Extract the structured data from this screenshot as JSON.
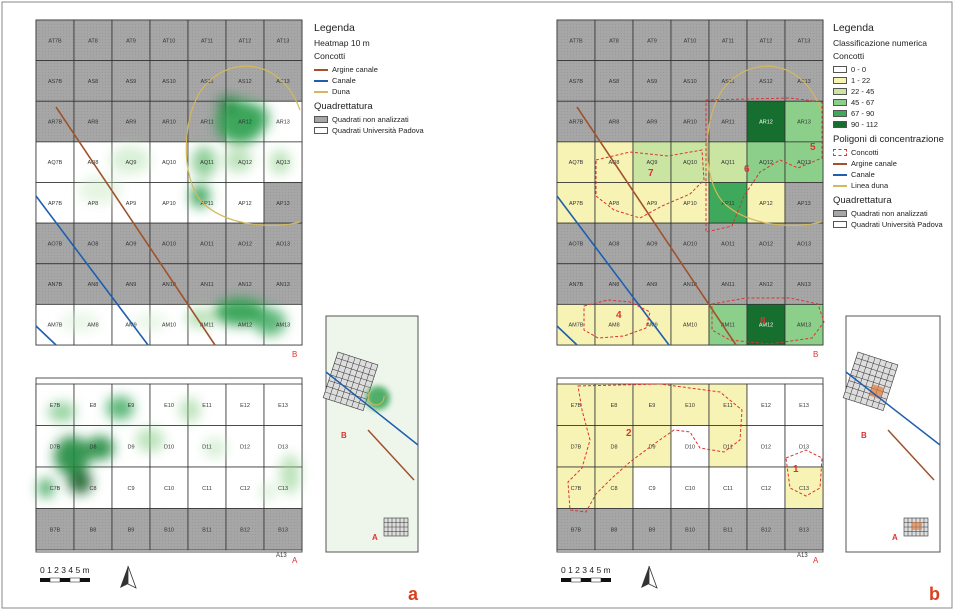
{
  "panel_a": {
    "letter": "a",
    "legend": {
      "title": "Legenda",
      "subtitle": "Heatmap 10 m",
      "concotti_label": "Concotti",
      "lines": [
        {
          "label": "Argine canale",
          "color": "#a0522d"
        },
        {
          "label": "Canale",
          "color": "#1f5fae"
        },
        {
          "label": "Duna",
          "color": "#d4b85c"
        }
      ],
      "grid_title": "Quadrettatura",
      "grid_items": [
        {
          "label": "Quadrati non analizzati",
          "color": "#a6a6a6"
        },
        {
          "label": "Quadrati Università Padova",
          "color": "#ffffff"
        }
      ]
    }
  },
  "panel_b": {
    "letter": "b",
    "legend": {
      "title": "Legenda",
      "subtitle": "Classificazione numerica",
      "concotti_label": "Concotti",
      "classes": [
        {
          "label": "0 - 0",
          "color": "#ffffff"
        },
        {
          "label": "1 - 22",
          "color": "#f7f3b4"
        },
        {
          "label": "22 - 45",
          "color": "#c9e5a1"
        },
        {
          "label": "45 - 67",
          "color": "#8ccf8a"
        },
        {
          "label": "67 - 90",
          "color": "#3ea95a"
        },
        {
          "label": "90 - 112",
          "color": "#166e2f"
        }
      ],
      "polygons_title": "Poligoni di concentrazione",
      "polygon_item": "Concotti",
      "lines": [
        {
          "label": "Argine canale",
          "color": "#a0522d"
        },
        {
          "label": "Canale",
          "color": "#1f5fae"
        },
        {
          "label": "Linea duna",
          "color": "#d4b85c"
        }
      ],
      "grid_title": "Quadrettatura",
      "grid_items": [
        {
          "label": "Quadrati non analizzati",
          "color": "#a6a6a6"
        },
        {
          "label": "Quadrati Università Padova",
          "color": "#ffffff"
        }
      ]
    }
  },
  "map": {
    "sector_b_label": "B",
    "sector_a_label": "A",
    "extra_label": "A13",
    "scale_text": "0 1 2 3 4 5 m",
    "top_grid": {
      "rows": [
        [
          "AT7B",
          "AT8",
          "AT9",
          "AT10",
          "AT11",
          "AT12",
          "AT13"
        ],
        [
          "AS7B",
          "AS8",
          "AS9",
          "AS10",
          "AS11",
          "AS12",
          "AS13"
        ],
        [
          "AR7B",
          "AR8",
          "AR9",
          "AR10",
          "AR11",
          "AR12",
          "AR13"
        ],
        [
          "AQ7B",
          "AQ8",
          "AQ9",
          "AQ10",
          "AQ11",
          "AQ12",
          "AQ13"
        ],
        [
          "AP7B",
          "AP8",
          "AP9",
          "AP10",
          "AP11",
          "AP12",
          "AP13"
        ],
        [
          "AO7B",
          "AO8",
          "AO9",
          "AO10",
          "AO11",
          "AO12",
          "AO13"
        ],
        [
          "AN7B",
          "AN8",
          "AN9",
          "AN10",
          "AN11",
          "AN12",
          "AN13"
        ],
        [
          "AM7B",
          "AM8",
          "AM9",
          "AM10",
          "AM11",
          "AM12",
          "AM13"
        ]
      ],
      "status": [
        [
          "g",
          "g",
          "g",
          "g",
          "g",
          "g",
          "g"
        ],
        [
          "g",
          "g",
          "g",
          "g",
          "g",
          "g",
          "g"
        ],
        [
          "g",
          "g",
          "g",
          "g",
          "g",
          "w",
          "w"
        ],
        [
          "w",
          "w",
          "w",
          "w",
          "w",
          "w",
          "w"
        ],
        [
          "w",
          "w",
          "w",
          "w",
          "w",
          "w",
          "g"
        ],
        [
          "g",
          "g",
          "g",
          "g",
          "g",
          "g",
          "g"
        ],
        [
          "g",
          "g",
          "g",
          "g",
          "g",
          "g",
          "g"
        ],
        [
          "w",
          "w",
          "w",
          "w",
          "w",
          "w",
          "w"
        ]
      ],
      "classes": [
        [
          0,
          0,
          0,
          0,
          0,
          0,
          0
        ],
        [
          0,
          0,
          0,
          0,
          0,
          0,
          0
        ],
        [
          0,
          0,
          0,
          0,
          0,
          5,
          3
        ],
        [
          1,
          1,
          2,
          2,
          2,
          3,
          3
        ],
        [
          1,
          1,
          1,
          1,
          4,
          1,
          1
        ],
        [
          0,
          0,
          0,
          0,
          0,
          0,
          0
        ],
        [
          0,
          0,
          0,
          0,
          0,
          0,
          0
        ],
        [
          1,
          1,
          1,
          1,
          3,
          5,
          3
        ]
      ]
    },
    "bottom_grid": {
      "rows": [
        [
          "E7B",
          "E8",
          "E9",
          "E10",
          "E11",
          "E12",
          "E13"
        ],
        [
          "D7B",
          "D8",
          "D9",
          "D10",
          "D11",
          "D12",
          "D13"
        ],
        [
          "C7B",
          "C8",
          "C9",
          "C10",
          "C11",
          "C12",
          "C13"
        ],
        [
          "B7B",
          "B8",
          "B9",
          "B10",
          "B11",
          "B12",
          "B13"
        ]
      ],
      "status": [
        [
          "w",
          "w",
          "w",
          "w",
          "w",
          "w",
          "w"
        ],
        [
          "w",
          "w",
          "w",
          "w",
          "w",
          "w",
          "w"
        ],
        [
          "w",
          "w",
          "w",
          "w",
          "w",
          "w",
          "w"
        ],
        [
          "g",
          "g",
          "g",
          "g",
          "g",
          "g",
          "g"
        ]
      ],
      "classes": [
        [
          1,
          1,
          1,
          1,
          1,
          0,
          0
        ],
        [
          1,
          1,
          1,
          0,
          1,
          0,
          0
        ],
        [
          1,
          1,
          0,
          0,
          0,
          0,
          1
        ],
        [
          0,
          0,
          0,
          0,
          0,
          0,
          0
        ]
      ]
    },
    "polygon_numbers": [
      "1",
      "2",
      "4",
      "5",
      "6",
      "7",
      "8"
    ]
  }
}
